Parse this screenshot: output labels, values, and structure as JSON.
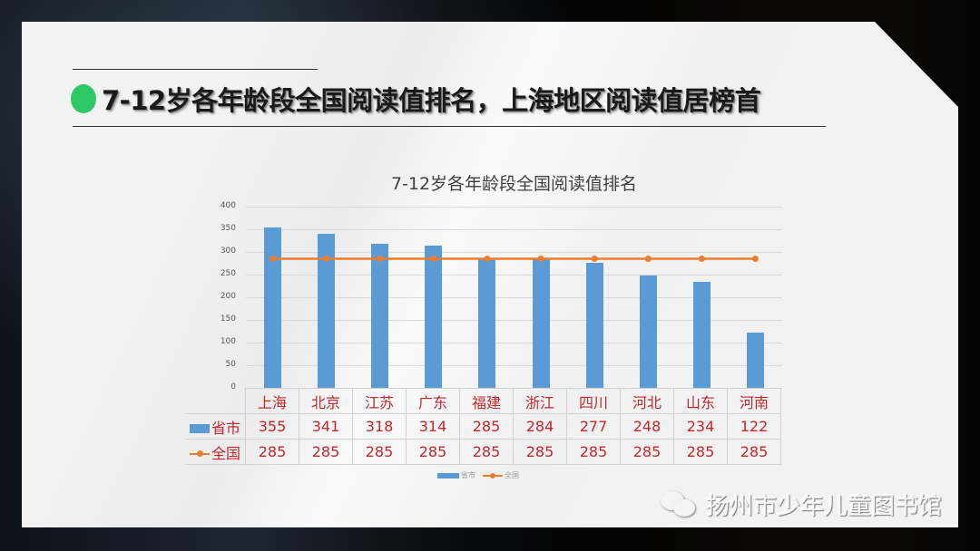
{
  "slide": {
    "headline": "7-12岁各年龄段全国阅读值排名，上海地区阅读值居榜首",
    "watermark": "扬州市少年儿童图书馆",
    "accent_dot_color": "#2ec866"
  },
  "chart_data": {
    "type": "bar",
    "title": "7-12岁各年龄段全国阅读值排名",
    "xlabel": "",
    "ylabel": "",
    "ylim": [
      0,
      400
    ],
    "yticks": [
      0,
      50,
      100,
      150,
      200,
      250,
      300,
      350,
      400
    ],
    "grid": true,
    "legend_position": "bottom",
    "categories": [
      "上海",
      "北京",
      "江苏",
      "广东",
      "福建",
      "浙江",
      "四川",
      "河北",
      "山东",
      "河南"
    ],
    "series": [
      {
        "name": "省市",
        "type": "bar",
        "color": "#5b9bd5",
        "values": [
          355,
          341,
          318,
          314,
          285,
          284,
          277,
          248,
          234,
          122
        ]
      },
      {
        "name": "全国",
        "type": "line",
        "color": "#ed7d31",
        "values": [
          285,
          285,
          285,
          285,
          285,
          285,
          285,
          285,
          285,
          285
        ]
      }
    ],
    "data_table": true
  },
  "legend": {
    "items": [
      "省市",
      "全国"
    ]
  }
}
